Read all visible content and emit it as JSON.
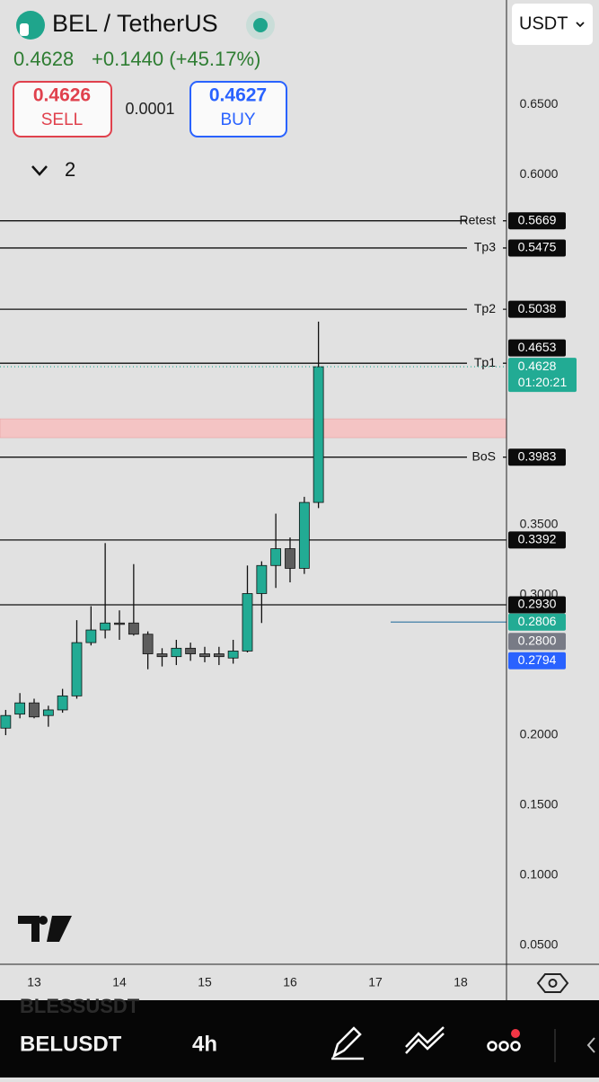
{
  "header": {
    "symbol": "BEL / TetherUS",
    "price": "0.4628",
    "change": "+0.1440 (+45.17%)",
    "sell_price": "0.4626",
    "sell": "SELL",
    "spread": "0.0001",
    "buy_price": "0.4627",
    "buy": "BUY",
    "indicators": "2",
    "currency": "USDT"
  },
  "chart_data": {
    "type": "candlestick",
    "x": [
      12.667,
      12.833,
      13,
      13.167,
      13.333,
      13.5,
      13.667,
      13.833,
      14,
      14.167,
      14.333,
      14.5,
      14.667,
      14.833,
      15,
      15.167,
      15.333,
      15.5,
      15.667,
      15.833,
      16,
      16.167,
      16.333
    ],
    "open": [
      0.205,
      0.215,
      0.223,
      0.214,
      0.218,
      0.228,
      0.266,
      0.275,
      0.28,
      0.28,
      0.272,
      0.258,
      0.256,
      0.262,
      0.258,
      0.258,
      0.255,
      0.26,
      0.301,
      0.321,
      0.333,
      0.319,
      0.366
    ],
    "high": [
      0.218,
      0.23,
      0.226,
      0.221,
      0.233,
      0.282,
      0.292,
      0.337,
      0.289,
      0.322,
      0.274,
      0.262,
      0.268,
      0.266,
      0.263,
      0.263,
      0.268,
      0.321,
      0.324,
      0.358,
      0.341,
      0.37,
      0.495
    ],
    "low": [
      0.2,
      0.212,
      0.212,
      0.206,
      0.216,
      0.226,
      0.264,
      0.269,
      0.268,
      0.271,
      0.247,
      0.249,
      0.25,
      0.253,
      0.252,
      0.25,
      0.251,
      0.259,
      0.28,
      0.305,
      0.309,
      0.315,
      0.362
    ],
    "close": [
      0.214,
      0.223,
      0.213,
      0.218,
      0.228,
      0.266,
      0.275,
      0.28,
      0.279,
      0.272,
      0.258,
      0.256,
      0.262,
      0.258,
      0.256,
      0.256,
      0.26,
      0.301,
      0.321,
      0.333,
      0.319,
      0.366,
      0.4628
    ],
    "up_color": "#22ab94",
    "down_color": "#5d5d5d",
    "xlim": [
      12.6,
      18.537
    ],
    "xticks": [
      13,
      14,
      15,
      16,
      17,
      18
    ],
    "ylim": [
      0.0372,
      0.7244
    ],
    "yticks": [
      {
        "value": 0.65,
        "label": "0.6500"
      },
      {
        "value": 0.6,
        "label": "0.6000"
      },
      {
        "value": 0.35,
        "label": "0.3500"
      },
      {
        "value": 0.3,
        "label": "0.3000"
      },
      {
        "value": 0.2,
        "label": "0.2000"
      },
      {
        "value": 0.15,
        "label": "0.1500"
      },
      {
        "value": 0.1,
        "label": "0.1000"
      },
      {
        "value": 0.05,
        "label": "0.0500"
      }
    ],
    "levels": [
      {
        "name": "Retest",
        "value": 0.5669,
        "label": "0.5669"
      },
      {
        "name": "Tp3",
        "value": 0.5475,
        "label": "0.5475"
      },
      {
        "name": "Tp2",
        "value": 0.5038,
        "label": "0.5038"
      },
      {
        "name": "Tp1",
        "value": 0.4653,
        "label": "0.4653"
      },
      {
        "name": "BoS",
        "value": 0.3983,
        "label": "0.3983"
      },
      {
        "value": 0.3392,
        "label": "0.3392"
      },
      {
        "value": 0.293,
        "label": "0.2930"
      }
    ],
    "zone": [
      0.4122,
      0.4256
    ],
    "zone_color": "#f4c4c4",
    "last_price": {
      "value": 0.4628,
      "label": "0.4628",
      "countdown": "01:20:21",
      "color": "#22ab94"
    },
    "markers": [
      {
        "value": 0.2806,
        "label": "0.2806",
        "color": "#22ab94",
        "line": true
      },
      {
        "value": 0.28,
        "label": "0.2800",
        "color": "#787b86"
      },
      {
        "value": 0.2794,
        "label": "0.2794",
        "color": "#2962ff"
      }
    ]
  },
  "toolbar": {
    "ghost": "BLESSUSDT",
    "symbol": "BELUSDT",
    "interval": "4h"
  }
}
